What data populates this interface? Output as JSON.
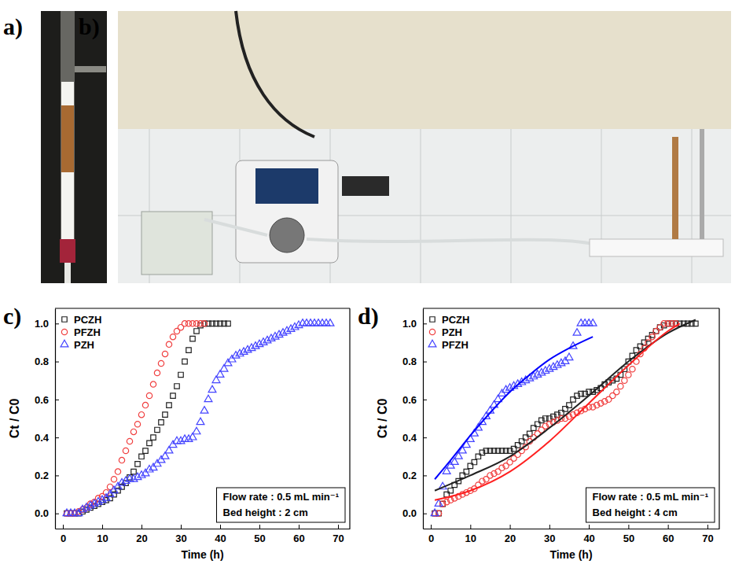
{
  "photos": [
    {
      "label": "a)"
    },
    {
      "label": "b)"
    }
  ],
  "chart_data": [
    {
      "type": "scatter",
      "label": "c)",
      "xlabel": "Time (h)",
      "ylabel": "Ct / C0",
      "xlim": [
        -2,
        73
      ],
      "ylim": [
        -0.08,
        1.08
      ],
      "xticks": [
        0,
        10,
        20,
        30,
        40,
        50,
        60,
        70
      ],
      "yticks": [
        {
          "value": 0,
          "label": "0.0"
        },
        {
          "value": 0.2,
          "label": "0.2"
        },
        {
          "value": 0.4,
          "label": "0.4"
        },
        {
          "value": 0.6,
          "label": "0.6"
        },
        {
          "value": 0.8,
          "label": "0.8"
        },
        {
          "value": 1.0,
          "label": "1.0"
        }
      ],
      "legend": "upper left",
      "annotations": [
        "Flow rate : 0.5 mL min⁻¹",
        "Bed height : 2 cm"
      ],
      "series": [
        {
          "name": "PCZH",
          "type": "scatter",
          "marker": "square",
          "color": "#222222",
          "x": [
            1,
            2,
            3,
            4,
            5,
            6,
            7,
            8,
            9,
            10,
            11,
            12,
            13,
            14,
            15,
            16,
            17,
            18,
            19,
            20,
            21,
            22,
            23,
            24,
            25,
            26,
            27,
            28,
            29,
            30,
            31,
            32,
            33,
            34,
            35,
            36,
            37,
            38,
            39,
            40,
            41,
            42
          ],
          "values": [
            0,
            0,
            0,
            0,
            0.01,
            0.02,
            0.03,
            0.04,
            0.05,
            0.06,
            0.07,
            0.08,
            0.1,
            0.12,
            0.14,
            0.16,
            0.19,
            0.22,
            0.26,
            0.3,
            0.33,
            0.37,
            0.4,
            0.44,
            0.48,
            0.52,
            0.57,
            0.62,
            0.67,
            0.73,
            0.8,
            0.86,
            0.92,
            0.96,
            0.99,
            1.0,
            1.0,
            1.0,
            1.0,
            1.0,
            1.0,
            1.0
          ]
        },
        {
          "name": "PFZH",
          "type": "scatter",
          "marker": "circle",
          "color": "#f04040",
          "x": [
            1,
            2,
            3,
            4,
            5,
            6,
            7,
            8,
            9,
            10,
            11,
            12,
            13,
            14,
            15,
            16,
            17,
            18,
            19,
            20,
            21,
            22,
            23,
            24,
            25,
            26,
            27,
            28,
            29,
            30,
            31,
            32,
            33,
            34,
            35,
            36
          ],
          "values": [
            0,
            0,
            0,
            0.01,
            0.02,
            0.03,
            0.05,
            0.06,
            0.08,
            0.09,
            0.11,
            0.14,
            0.18,
            0.22,
            0.28,
            0.33,
            0.38,
            0.43,
            0.47,
            0.52,
            0.57,
            0.62,
            0.68,
            0.74,
            0.79,
            0.84,
            0.89,
            0.93,
            0.96,
            0.98,
            1.0,
            1.0,
            1.0,
            1.0,
            1.0,
            1.0
          ]
        },
        {
          "name": "PZH",
          "type": "scatter",
          "marker": "triangle",
          "color": "#4444ff",
          "x": [
            1,
            2,
            3,
            4,
            5,
            6,
            7,
            8,
            9,
            10,
            11,
            12,
            13,
            14,
            15,
            16,
            17,
            18,
            19,
            20,
            21,
            22,
            23,
            24,
            25,
            26,
            27,
            28,
            29,
            30,
            31,
            32,
            33,
            34,
            35,
            36,
            37,
            38,
            39,
            40,
            41,
            42,
            43,
            44,
            45,
            46,
            47,
            48,
            49,
            50,
            51,
            52,
            53,
            54,
            55,
            56,
            57,
            58,
            59,
            60,
            61,
            62,
            63,
            64,
            65,
            66,
            67,
            68
          ],
          "values": [
            0,
            0,
            0,
            0,
            0.02,
            0.03,
            0.04,
            0.05,
            0.06,
            0.07,
            0.08,
            0.1,
            0.12,
            0.14,
            0.16,
            0.17,
            0.18,
            0.18,
            0.19,
            0.2,
            0.21,
            0.23,
            0.24,
            0.26,
            0.28,
            0.3,
            0.33,
            0.36,
            0.38,
            0.38,
            0.39,
            0.39,
            0.4,
            0.43,
            0.48,
            0.54,
            0.6,
            0.65,
            0.7,
            0.73,
            0.76,
            0.79,
            0.81,
            0.83,
            0.84,
            0.85,
            0.86,
            0.87,
            0.88,
            0.89,
            0.9,
            0.91,
            0.92,
            0.93,
            0.94,
            0.95,
            0.96,
            0.97,
            0.98,
            0.99,
            1.0,
            1.0,
            1.0,
            1.0,
            1.0,
            1.0,
            1.0,
            1.0
          ]
        }
      ]
    },
    {
      "type": "scatter",
      "label": "d)",
      "xlabel": "Time (h)",
      "ylabel": "Ct / C0",
      "xlim": [
        -2,
        73
      ],
      "ylim": [
        -0.08,
        1.08
      ],
      "xticks": [
        0,
        10,
        20,
        30,
        40,
        50,
        60,
        70
      ],
      "yticks": [
        {
          "value": 0,
          "label": "0.0"
        },
        {
          "value": 0.2,
          "label": "0.2"
        },
        {
          "value": 0.4,
          "label": "0.4"
        },
        {
          "value": 0.6,
          "label": "0.6"
        },
        {
          "value": 0.8,
          "label": "0.8"
        },
        {
          "value": 1.0,
          "label": "1.0"
        }
      ],
      "legend": "upper left",
      "annotations": [
        "Flow rate : 0.5 mL min⁻¹",
        "Bed height : 4 cm"
      ],
      "series": [
        {
          "name": "PCZH",
          "type": "scatter",
          "marker": "square",
          "color": "#222222",
          "x": [
            1,
            2,
            3,
            4,
            5,
            6,
            7,
            8,
            9,
            10,
            11,
            12,
            13,
            14,
            15,
            16,
            17,
            18,
            19,
            20,
            21,
            22,
            23,
            24,
            25,
            26,
            27,
            28,
            29,
            30,
            31,
            32,
            33,
            34,
            35,
            36,
            37,
            38,
            39,
            40,
            41,
            42,
            43,
            44,
            45,
            46,
            47,
            48,
            49,
            50,
            51,
            52,
            53,
            54,
            55,
            56,
            57,
            58,
            59,
            60,
            61,
            62,
            63,
            64,
            65,
            66,
            67
          ],
          "values": [
            0,
            0,
            0.05,
            0.1,
            0.12,
            0.15,
            0.17,
            0.2,
            0.22,
            0.25,
            0.27,
            0.3,
            0.32,
            0.33,
            0.33,
            0.33,
            0.33,
            0.33,
            0.33,
            0.33,
            0.34,
            0.36,
            0.38,
            0.4,
            0.42,
            0.45,
            0.47,
            0.49,
            0.5,
            0.5,
            0.51,
            0.52,
            0.53,
            0.55,
            0.57,
            0.6,
            0.62,
            0.63,
            0.63,
            0.64,
            0.64,
            0.65,
            0.66,
            0.68,
            0.69,
            0.7,
            0.71,
            0.73,
            0.76,
            0.8,
            0.83,
            0.86,
            0.88,
            0.9,
            0.92,
            0.94,
            0.96,
            0.98,
            0.99,
            1.0,
            1.0,
            1.0,
            1.0,
            1.0,
            1.0,
            1.0,
            1.0
          ]
        },
        {
          "name": "PZH",
          "type": "scatter",
          "marker": "circle",
          "color": "#f04040",
          "x": [
            1,
            2,
            3,
            4,
            5,
            6,
            7,
            8,
            9,
            10,
            11,
            12,
            13,
            14,
            15,
            16,
            17,
            18,
            19,
            20,
            21,
            22,
            23,
            24,
            25,
            26,
            27,
            28,
            29,
            30,
            31,
            32,
            33,
            34,
            35,
            36,
            37,
            38,
            39,
            40,
            41,
            42,
            43,
            44,
            45,
            46,
            47,
            48,
            49,
            50,
            51,
            52,
            53,
            54,
            55,
            56,
            57,
            58,
            59,
            60,
            61,
            62
          ],
          "values": [
            0,
            0,
            0.05,
            0.06,
            0.07,
            0.08,
            0.09,
            0.1,
            0.11,
            0.12,
            0.13,
            0.15,
            0.17,
            0.18,
            0.2,
            0.21,
            0.22,
            0.24,
            0.25,
            0.27,
            0.29,
            0.31,
            0.33,
            0.35,
            0.38,
            0.4,
            0.42,
            0.44,
            0.46,
            0.47,
            0.48,
            0.49,
            0.5,
            0.5,
            0.51,
            0.52,
            0.53,
            0.54,
            0.55,
            0.56,
            0.56,
            0.57,
            0.58,
            0.59,
            0.6,
            0.62,
            0.64,
            0.67,
            0.7,
            0.73,
            0.76,
            0.8,
            0.84,
            0.87,
            0.9,
            0.93,
            0.96,
            0.98,
            1.0,
            1.0,
            1.0,
            1.0
          ]
        },
        {
          "name": "PFZH",
          "type": "scatter",
          "marker": "triangle",
          "color": "#4444ff",
          "x": [
            1,
            2,
            3,
            4,
            5,
            6,
            7,
            8,
            9,
            10,
            11,
            12,
            13,
            14,
            15,
            16,
            17,
            18,
            19,
            20,
            21,
            22,
            23,
            24,
            25,
            26,
            27,
            28,
            29,
            30,
            31,
            32,
            33,
            34,
            35,
            36,
            37,
            38,
            39,
            40,
            41
          ],
          "values": [
            0,
            0.05,
            0.14,
            0.22,
            0.25,
            0.27,
            0.3,
            0.33,
            0.36,
            0.39,
            0.42,
            0.45,
            0.48,
            0.51,
            0.54,
            0.57,
            0.6,
            0.63,
            0.65,
            0.66,
            0.67,
            0.68,
            0.69,
            0.7,
            0.71,
            0.72,
            0.73,
            0.74,
            0.75,
            0.76,
            0.77,
            0.78,
            0.79,
            0.8,
            0.82,
            0.88,
            0.95,
            1.0,
            1.0,
            1.0,
            1.0
          ]
        },
        {
          "type": "line",
          "line_style": "solid",
          "color": "#222222",
          "x": [
            1,
            10,
            20,
            30,
            40,
            50,
            60,
            67
          ],
          "values": [
            0.12,
            0.2,
            0.3,
            0.45,
            0.62,
            0.8,
            0.95,
            1.02
          ]
        },
        {
          "type": "line",
          "line_style": "solid",
          "color": "#ff2020",
          "x": [
            1,
            10,
            20,
            30,
            40,
            50,
            60,
            63
          ],
          "values": [
            0.07,
            0.12,
            0.22,
            0.38,
            0.58,
            0.78,
            0.96,
            1.0
          ]
        },
        {
          "type": "line",
          "line_style": "solid",
          "color": "#0000ff",
          "x": [
            1,
            5,
            10,
            15,
            20,
            25,
            30,
            35,
            41
          ],
          "values": [
            0.18,
            0.28,
            0.41,
            0.53,
            0.64,
            0.73,
            0.81,
            0.87,
            0.93
          ]
        }
      ]
    }
  ]
}
